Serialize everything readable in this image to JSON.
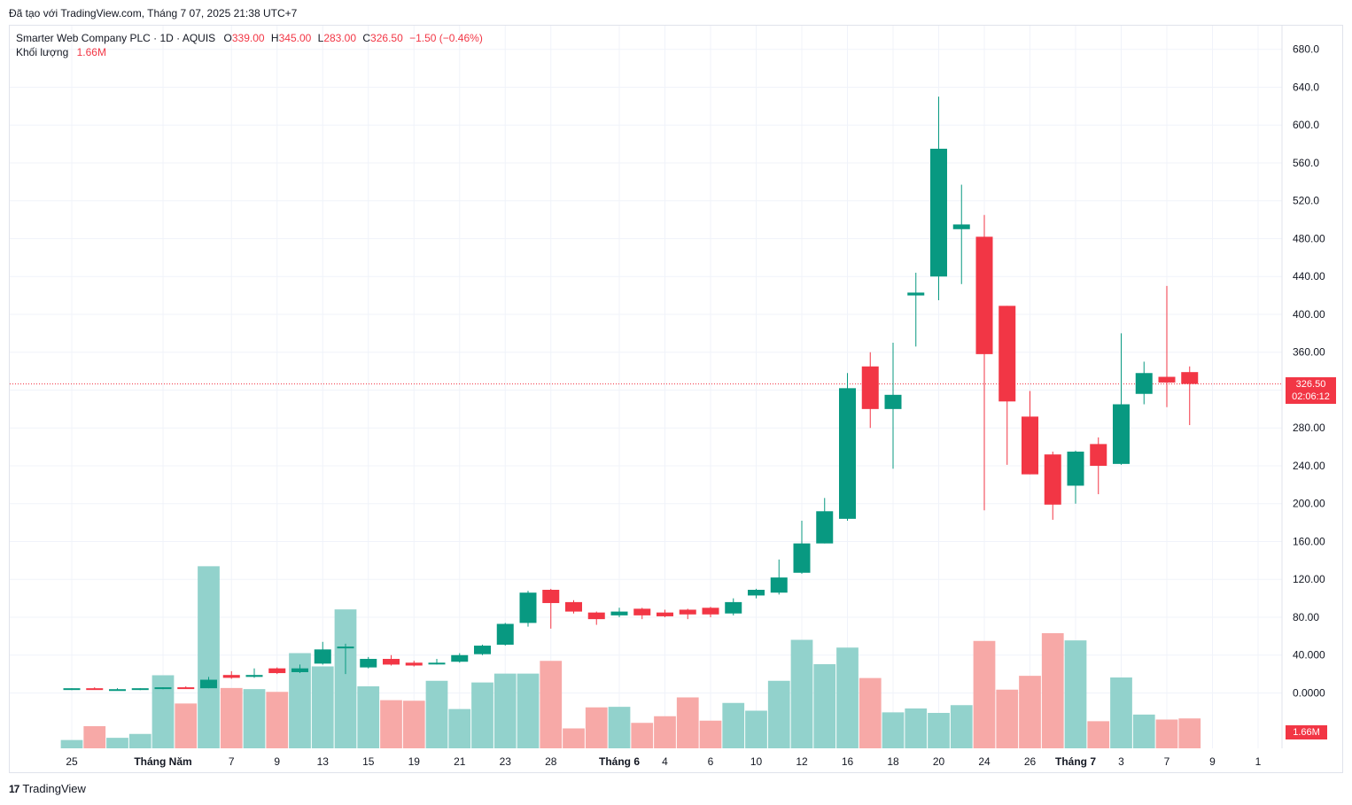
{
  "header": {
    "credit": "Đã tạo với TradingView.com, Tháng 7 07, 2025 21:38 UTC+7"
  },
  "legend": {
    "symbol": "Smarter Web Company PLC · 1D · AQUIS",
    "open_label": "O",
    "open": "339.00",
    "high_label": "H",
    "high": "345.00",
    "low_label": "L",
    "low": "283.00",
    "close_label": "C",
    "close": "326.50",
    "change": "−1.50 (−0.46%)",
    "volume_label": "Khối lượng",
    "volume": "1.66M"
  },
  "price_tag": {
    "price": "326.50",
    "countdown": "02:06:12"
  },
  "volume_tag": "1.66M",
  "footer": {
    "logo_mark": "17",
    "logo_text": "TradingView"
  },
  "colors": {
    "up": "#089981",
    "down": "#f23645",
    "vol_up": "#92d2cc",
    "vol_down": "#f7a9a7",
    "grid": "#f0f3fa",
    "text": "#131722"
  },
  "chart_data": {
    "type": "candlestick",
    "y_axis_ticks": [
      "680.0",
      "640.0",
      "600.0",
      "560.0",
      "520.0",
      "480.00",
      "440.00",
      "400.00",
      "360.00",
      "320.00",
      "280.00",
      "240.00",
      "200.00",
      "160.00",
      "120.00",
      "80.00",
      "40.000",
      "0.0000"
    ],
    "y_axis_values": [
      680,
      640,
      600,
      560,
      520,
      480,
      440,
      400,
      360,
      320,
      280,
      240,
      200,
      160,
      120,
      80,
      40,
      0
    ],
    "x_axis_labels": [
      {
        "text": "25",
        "bar": 0
      },
      {
        "text": "Tháng Năm",
        "bar": 4
      },
      {
        "text": "7",
        "bar": 7
      },
      {
        "text": "9",
        "bar": 9
      },
      {
        "text": "13",
        "bar": 11
      },
      {
        "text": "15",
        "bar": 13
      },
      {
        "text": "19",
        "bar": 15
      },
      {
        "text": "21",
        "bar": 17
      },
      {
        "text": "23",
        "bar": 19
      },
      {
        "text": "28",
        "bar": 21
      },
      {
        "text": "Tháng 6",
        "bar": 24
      },
      {
        "text": "4",
        "bar": 26
      },
      {
        "text": "6",
        "bar": 28
      },
      {
        "text": "10",
        "bar": 30
      },
      {
        "text": "12",
        "bar": 32
      },
      {
        "text": "16",
        "bar": 34
      },
      {
        "text": "18",
        "bar": 36
      },
      {
        "text": "20",
        "bar": 38
      },
      {
        "text": "24",
        "bar": 40
      },
      {
        "text": "26",
        "bar": 42
      },
      {
        "text": "Tháng 7",
        "bar": 44
      },
      {
        "text": "3",
        "bar": 46
      },
      {
        "text": "7",
        "bar": 48
      },
      {
        "text": "9",
        "bar": 50
      },
      {
        "text": "1",
        "bar": 52
      }
    ],
    "last_price": 326.5,
    "candles": [
      {
        "o": 4,
        "h": 5,
        "l": 3,
        "c": 5
      },
      {
        "o": 5,
        "h": 6,
        "l": 4,
        "c": 4
      },
      {
        "o": 4,
        "h": 5,
        "l": 3,
        "c": 4
      },
      {
        "o": 4,
        "h": 5,
        "l": 3,
        "c": 5
      },
      {
        "o": 5,
        "h": 6,
        "l": 4,
        "c": 6
      },
      {
        "o": 6,
        "h": 7,
        "l": 5,
        "c": 5
      },
      {
        "o": 5,
        "h": 17,
        "l": 5,
        "c": 14
      },
      {
        "o": 19,
        "h": 23,
        "l": 15,
        "c": 16
      },
      {
        "o": 17,
        "h": 26,
        "l": 16,
        "c": 19
      },
      {
        "o": 26,
        "h": 27,
        "l": 20,
        "c": 21
      },
      {
        "o": 22,
        "h": 30,
        "l": 21,
        "c": 26
      },
      {
        "o": 31,
        "h": 54,
        "l": 30,
        "c": 46
      },
      {
        "o": 48,
        "h": 52,
        "l": 20,
        "c": 49
      },
      {
        "o": 27,
        "h": 38,
        "l": 26,
        "c": 36
      },
      {
        "o": 36,
        "h": 40,
        "l": 29,
        "c": 30
      },
      {
        "o": 32,
        "h": 34,
        "l": 28,
        "c": 29
      },
      {
        "o": 32,
        "h": 36,
        "l": 30,
        "c": 32
      },
      {
        "o": 33,
        "h": 42,
        "l": 32,
        "c": 40
      },
      {
        "o": 41,
        "h": 51,
        "l": 40,
        "c": 50
      },
      {
        "o": 51,
        "h": 74,
        "l": 50,
        "c": 73
      },
      {
        "o": 74,
        "h": 108,
        "l": 70,
        "c": 106
      },
      {
        "o": 109,
        "h": 110,
        "l": 68,
        "c": 95
      },
      {
        "o": 96,
        "h": 98,
        "l": 84,
        "c": 86
      },
      {
        "o": 85,
        "h": 86,
        "l": 72,
        "c": 78
      },
      {
        "o": 82,
        "h": 90,
        "l": 80,
        "c": 86
      },
      {
        "o": 89,
        "h": 90,
        "l": 78,
        "c": 82
      },
      {
        "o": 85,
        "h": 88,
        "l": 80,
        "c": 81
      },
      {
        "o": 88,
        "h": 89,
        "l": 78,
        "c": 83
      },
      {
        "o": 90,
        "h": 91,
        "l": 80,
        "c": 83
      },
      {
        "o": 84,
        "h": 100,
        "l": 82,
        "c": 96
      },
      {
        "o": 103,
        "h": 110,
        "l": 100,
        "c": 109
      },
      {
        "o": 106,
        "h": 141,
        "l": 104,
        "c": 122
      },
      {
        "o": 127,
        "h": 182,
        "l": 126,
        "c": 158
      },
      {
        "o": 158,
        "h": 206,
        "l": 158,
        "c": 192
      },
      {
        "o": 184,
        "h": 338,
        "l": 182,
        "c": 322
      },
      {
        "o": 345,
        "h": 360,
        "l": 280,
        "c": 300
      },
      {
        "o": 300,
        "h": 370,
        "l": 237,
        "c": 315
      },
      {
        "o": 420,
        "h": 444,
        "l": 366,
        "c": 423
      },
      {
        "o": 440,
        "h": 630,
        "l": 415,
        "c": 575
      },
      {
        "o": 490,
        "h": 537,
        "l": 432,
        "c": 495
      },
      {
        "o": 482,
        "h": 505,
        "l": 193,
        "c": 358
      },
      {
        "o": 409,
        "h": 409,
        "l": 241,
        "c": 308
      },
      {
        "o": 292,
        "h": 319,
        "l": 231,
        "c": 231
      },
      {
        "o": 252,
        "h": 255,
        "l": 183,
        "c": 199
      },
      {
        "o": 219,
        "h": 256,
        "l": 200,
        "c": 255
      },
      {
        "o": 263,
        "h": 270,
        "l": 210,
        "c": 240
      },
      {
        "o": 242,
        "h": 380,
        "l": 241,
        "c": 305
      },
      {
        "o": 316,
        "h": 350,
        "l": 305,
        "c": 338
      },
      {
        "o": 334,
        "h": 430,
        "l": 302,
        "c": 328
      },
      {
        "o": 339,
        "h": 345,
        "l": 283,
        "c": 326.5
      }
    ],
    "volume_unit": "relative",
    "volumes": [
      1.5,
      4,
      1.9,
      2.6,
      13.2,
      8.1,
      32.9,
      10.9,
      10.7,
      10.2,
      17.2,
      14.8,
      25.1,
      11.2,
      8.7,
      8.6,
      12.2,
      7.1,
      11.9,
      13.5,
      13.5,
      15.8,
      3.6,
      7.4,
      7.5,
      4.6,
      5.8,
      9.2,
      5.0,
      8.2,
      6.8,
      12.2,
      19.6,
      15.2,
      18.2,
      12.7,
      6.5,
      7.2,
      6.4,
      7.8,
      19.4,
      10.6,
      13.1,
      20.8,
      19.5,
      4.9,
      12.8,
      6.1,
      5.2,
      5.4
    ]
  }
}
